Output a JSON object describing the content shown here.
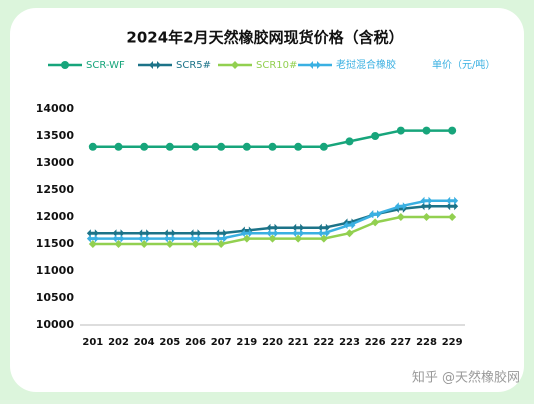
{
  "chart_data": {
    "type": "line",
    "title": "2024年2月天然橡胶网现货价格（含税）",
    "y_label": "单价（元/吨）",
    "categories": [
      "201",
      "202",
      "204",
      "205",
      "206",
      "207",
      "219",
      "220",
      "221",
      "222",
      "223",
      "226",
      "227",
      "228",
      "229"
    ],
    "series": [
      {
        "name": "SCR-WF",
        "color": "#17a57b",
        "marker": "circle",
        "values": [
          13300,
          13300,
          13300,
          13300,
          13300,
          13300,
          13300,
          13300,
          13300,
          13300,
          13400,
          13500,
          13600,
          13600,
          13600
        ]
      },
      {
        "name": "SCR5#",
        "color": "#1c7388",
        "marker": "arrow",
        "values": [
          11700,
          11700,
          11700,
          11700,
          11700,
          11700,
          11750,
          11800,
          11800,
          11800,
          11900,
          12050,
          12150,
          12200,
          12200
        ]
      },
      {
        "name": "SCR10#",
        "color": "#92d050",
        "marker": "diamond",
        "values": [
          11500,
          11500,
          11500,
          11500,
          11500,
          11500,
          11600,
          11600,
          11600,
          11600,
          11700,
          11900,
          12000,
          12000,
          12000
        ]
      },
      {
        "name": "老挝混合橡胶",
        "color": "#3ab0e2",
        "marker": "arrow",
        "values": [
          11600,
          11600,
          11600,
          11600,
          11600,
          11600,
          11700,
          11700,
          11700,
          11700,
          11850,
          12050,
          12200,
          12300,
          12300
        ]
      }
    ],
    "ylim": [
      10000,
      14000
    ],
    "yticks": [
      10000,
      10500,
      11000,
      11500,
      12000,
      12500,
      13000,
      13500,
      14000
    ],
    "grid": false,
    "watermark": "知乎 @天然橡胶网"
  }
}
